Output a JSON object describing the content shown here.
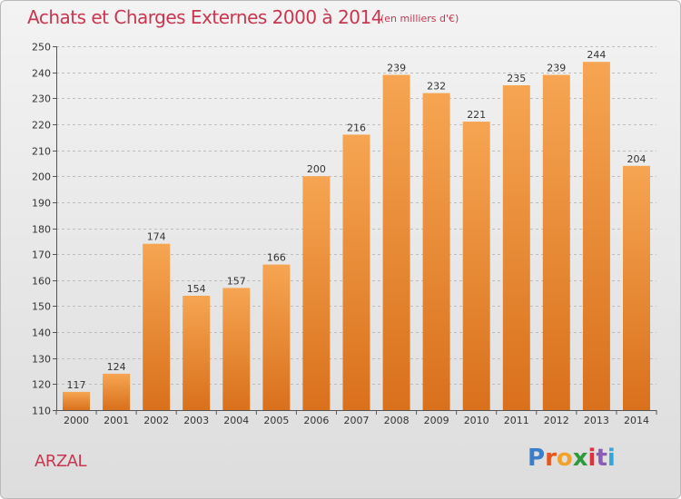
{
  "header": {
    "title": "Achats et Charges Externes 2000 à 2014",
    "unit": "(en milliers d'€)"
  },
  "footer": {
    "commune": "ARZAL",
    "logo_letters": [
      "P",
      "r",
      "o",
      "x",
      "i",
      "t",
      "i"
    ],
    "logo_colors": [
      "#3a7dc9",
      "#e8541e",
      "#f0a22a",
      "#2e9a3d",
      "#e0303d",
      "#8b5cb8",
      "#32a6d9"
    ]
  },
  "colors": {
    "bar_top": "#f6a552",
    "bar_bottom": "#d9701c",
    "grid": "#bdbdbd",
    "axis": "#555555",
    "title": "#c8364f"
  },
  "chart_data": {
    "type": "bar",
    "categories": [
      "2000",
      "2001",
      "2002",
      "2003",
      "2004",
      "2005",
      "2006",
      "2007",
      "2008",
      "2009",
      "2010",
      "2011",
      "2012",
      "2013",
      "2014"
    ],
    "values": [
      117,
      124,
      174,
      154,
      157,
      166,
      200,
      216,
      239,
      232,
      221,
      235,
      239,
      244,
      204
    ],
    "yticks": [
      110,
      120,
      130,
      140,
      150,
      160,
      170,
      180,
      190,
      200,
      210,
      220,
      230,
      240,
      250
    ],
    "ylim": [
      110,
      250
    ],
    "grid": true
  }
}
